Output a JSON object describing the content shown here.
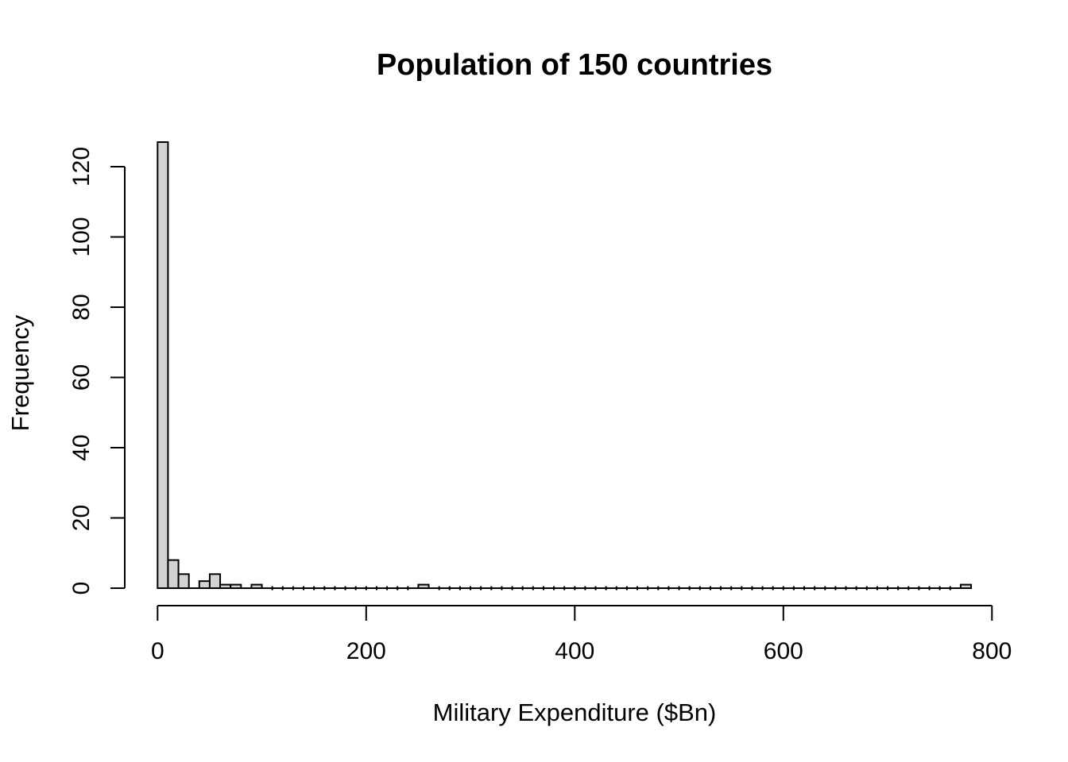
{
  "page": {
    "background": "#ffffff"
  },
  "chart_data": {
    "type": "bar",
    "chart_style": "histogram",
    "title": "Population of 150 countries",
    "xlabel": "Military Expenditure ($Bn)",
    "ylabel": "Frequency",
    "x_ticks": [
      0,
      200,
      400,
      600,
      800
    ],
    "y_ticks": [
      0,
      20,
      40,
      60,
      80,
      100,
      120
    ],
    "xlim": [
      0,
      800
    ],
    "ylim": [
      0,
      127
    ],
    "grid": false,
    "legend": null,
    "bin_start": 0,
    "bin_end": 780,
    "bin_width": 10,
    "total_count": 150,
    "bin_counts": [
      127,
      8,
      4,
      0,
      2,
      4,
      1,
      1,
      0,
      1,
      0,
      0,
      0,
      0,
      0,
      0,
      0,
      0,
      0,
      0,
      0,
      0,
      0,
      0,
      0,
      1,
      0,
      0,
      0,
      0,
      0,
      0,
      0,
      0,
      0,
      0,
      0,
      0,
      0,
      0,
      0,
      0,
      0,
      0,
      0,
      0,
      0,
      0,
      0,
      0,
      0,
      0,
      0,
      0,
      0,
      0,
      0,
      0,
      0,
      0,
      0,
      0,
      0,
      0,
      0,
      0,
      0,
      0,
      0,
      0,
      0,
      0,
      0,
      0,
      0,
      0,
      0,
      1
    ],
    "nonzero_bins": [
      {
        "from": 0,
        "to": 10,
        "count": 127
      },
      {
        "from": 10,
        "to": 20,
        "count": 8
      },
      {
        "from": 20,
        "to": 30,
        "count": 4
      },
      {
        "from": 40,
        "to": 50,
        "count": 2
      },
      {
        "from": 50,
        "to": 60,
        "count": 4
      },
      {
        "from": 60,
        "to": 70,
        "count": 1
      },
      {
        "from": 70,
        "to": 80,
        "count": 1
      },
      {
        "from": 90,
        "to": 100,
        "count": 1
      },
      {
        "from": 250,
        "to": 260,
        "count": 1
      },
      {
        "from": 770,
        "to": 780,
        "count": 1
      }
    ],
    "bar_fill": "#d3d3d3",
    "bar_stroke": "#000000",
    "text_color": "#000000",
    "background": "#ffffff"
  }
}
